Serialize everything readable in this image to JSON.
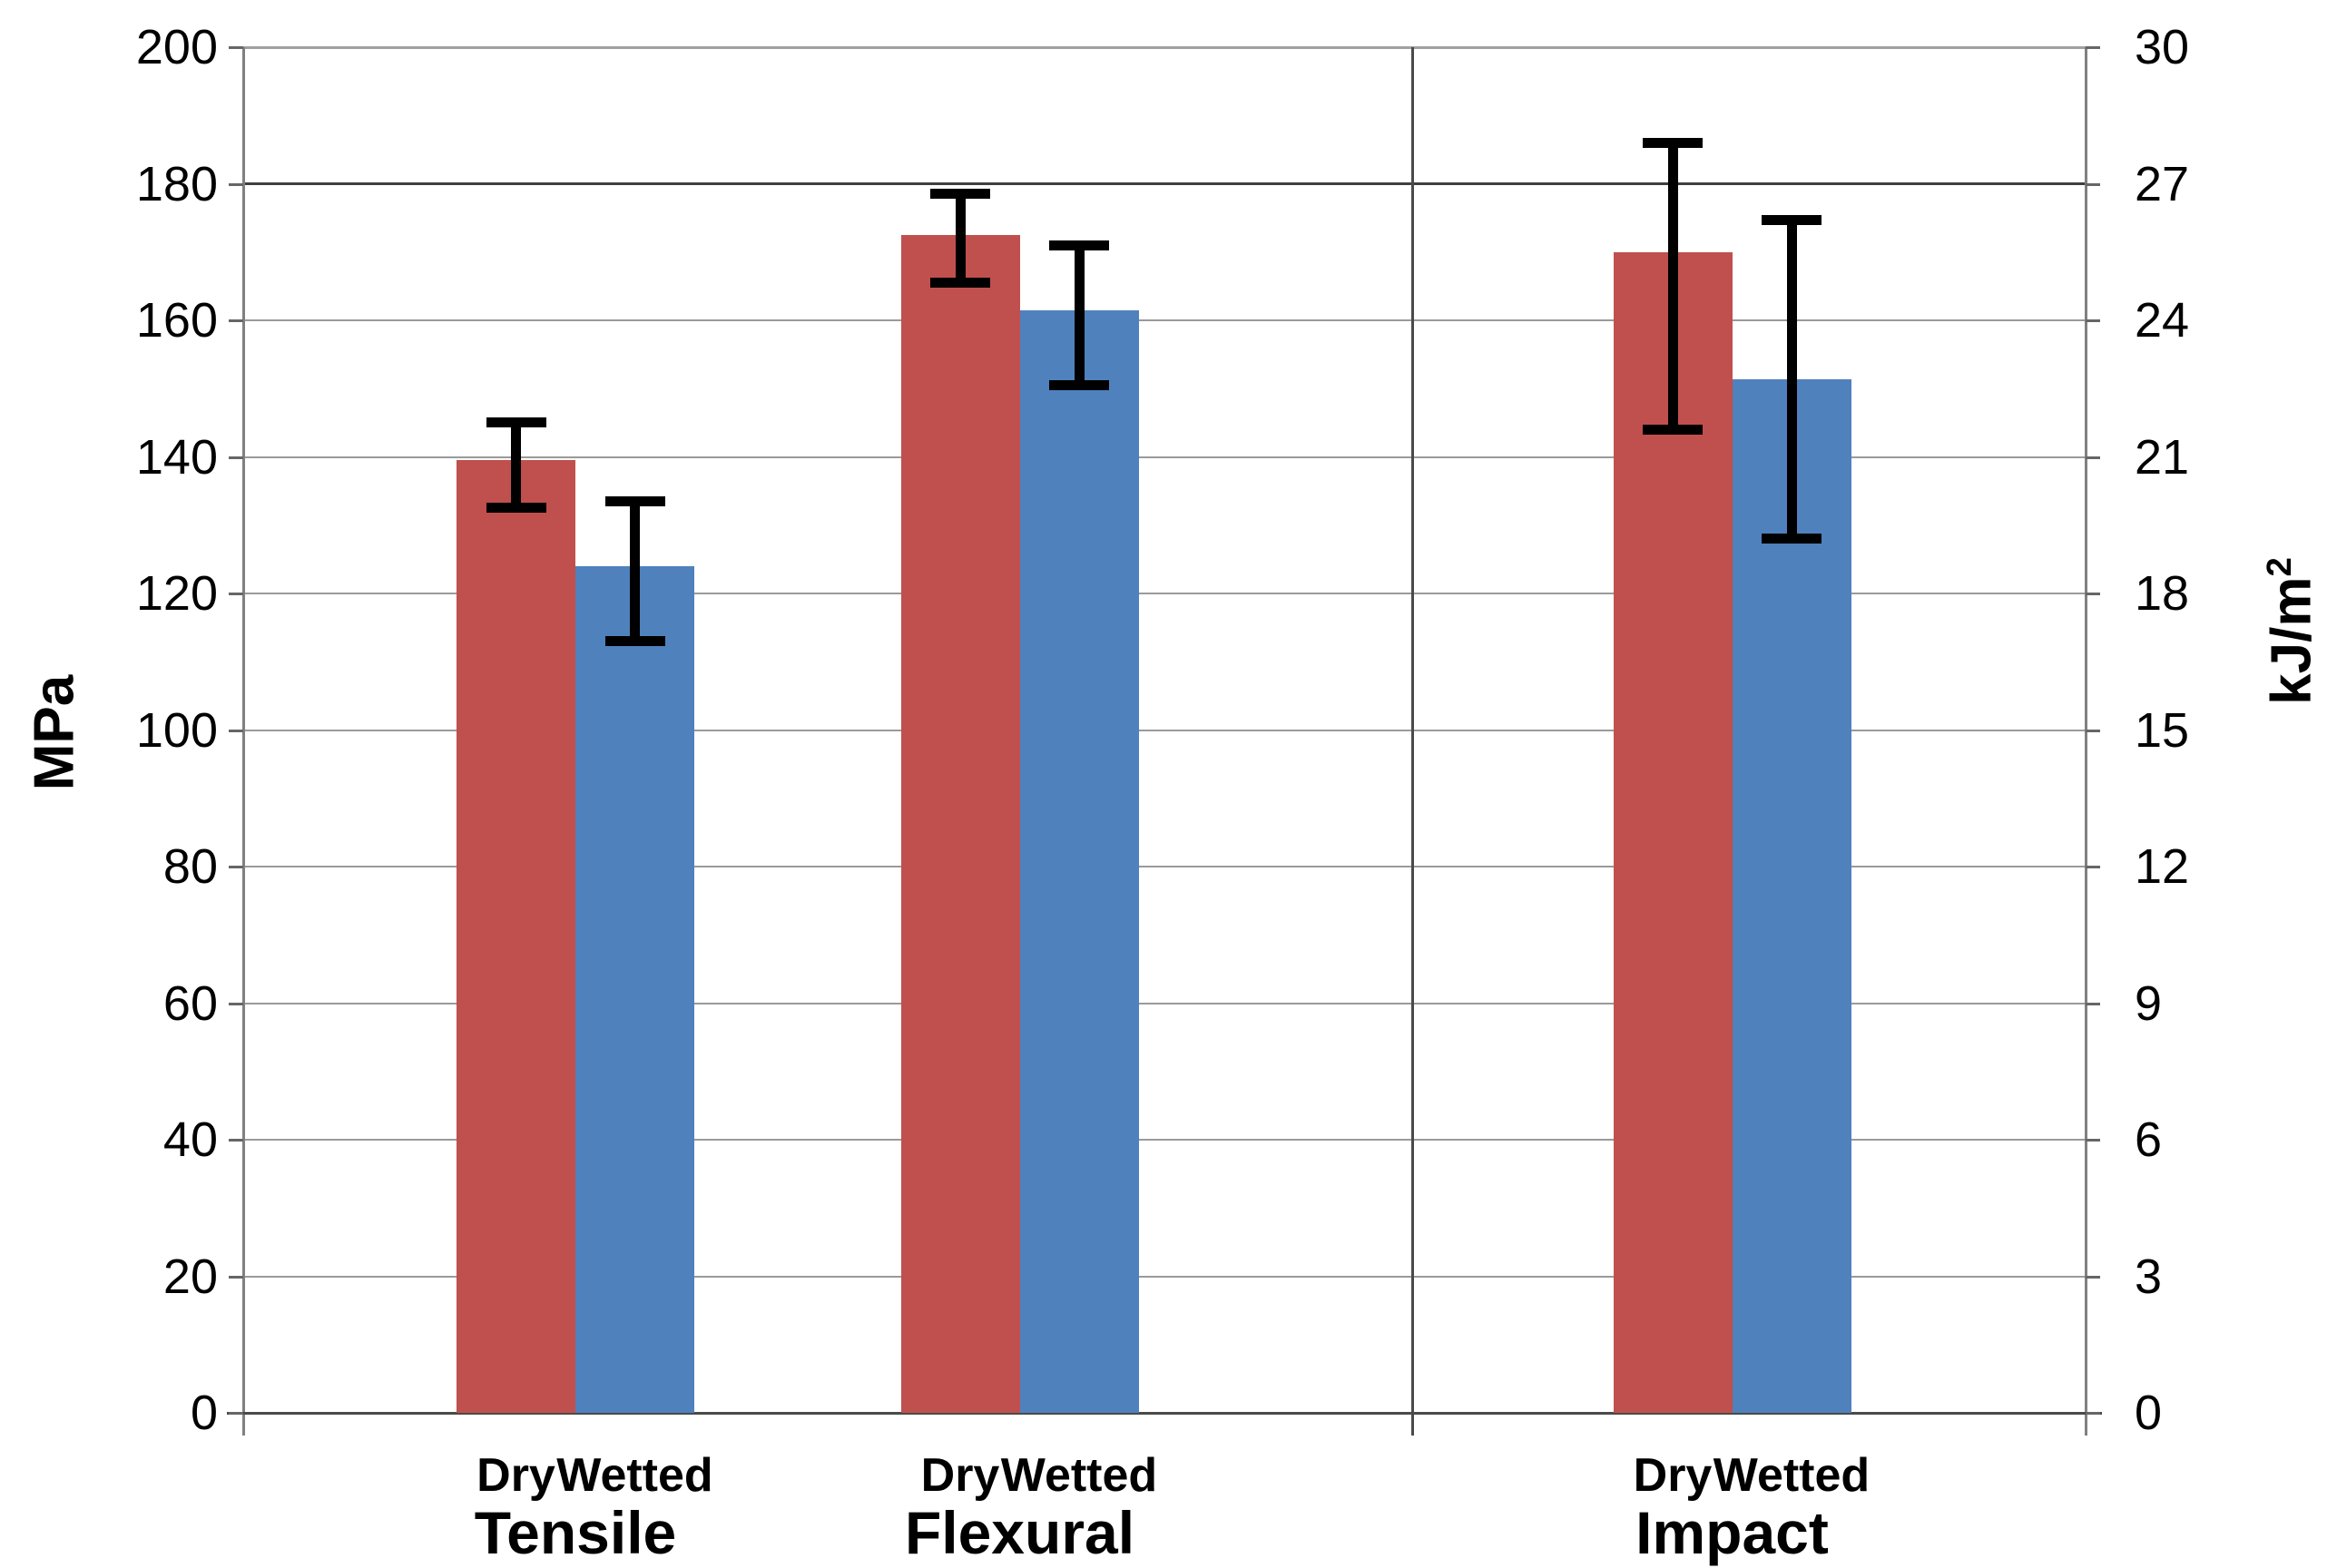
{
  "chart_data": {
    "type": "bar",
    "title": "",
    "legend": "none",
    "grid": "horizontal",
    "error_bars": true,
    "series": [
      {
        "name": "Dry",
        "color": "#C0504D"
      },
      {
        "name": "Wetted",
        "color": "#4F81BD"
      }
    ],
    "left_axis": {
      "title": "MPa",
      "range": [
        0,
        200
      ],
      "ticks": [
        0,
        20,
        40,
        60,
        80,
        100,
        120,
        140,
        160,
        180,
        200
      ],
      "applies_to": [
        "Tensile",
        "Flexural"
      ]
    },
    "right_axis": {
      "title": "kJ/m²",
      "title_base": "kJ/m",
      "title_sup": "2",
      "range": [
        0,
        30
      ],
      "ticks": [
        0,
        3,
        6,
        9,
        12,
        15,
        18,
        21,
        24,
        27,
        30
      ],
      "applies_to": [
        "Impact"
      ]
    },
    "groups": [
      {
        "label": "Tensile",
        "axis": "left",
        "unit": "MPa",
        "bars": [
          {
            "condition": "Dry",
            "value": 139.5,
            "err_low": 132.5,
            "err_high": 145.0
          },
          {
            "condition": "Wetted",
            "value": 124.0,
            "err_low": 113.0,
            "err_high": 133.5
          }
        ]
      },
      {
        "label": "Flexural",
        "axis": "left",
        "unit": "MPa",
        "bars": [
          {
            "condition": "Dry",
            "value": 172.5,
            "err_low": 165.5,
            "err_high": 178.5
          },
          {
            "condition": "Wetted",
            "value": 161.5,
            "err_low": 150.5,
            "err_high": 171.0
          }
        ]
      },
      {
        "label": "Impact",
        "axis": "right",
        "unit": "kJ/m²",
        "bars": [
          {
            "condition": "Dry",
            "value": 25.5,
            "err_low": 21.6,
            "err_high": 27.9
          },
          {
            "condition": "Wetted",
            "value": 22.7,
            "err_low": 19.2,
            "err_high": 26.2
          }
        ]
      }
    ]
  }
}
